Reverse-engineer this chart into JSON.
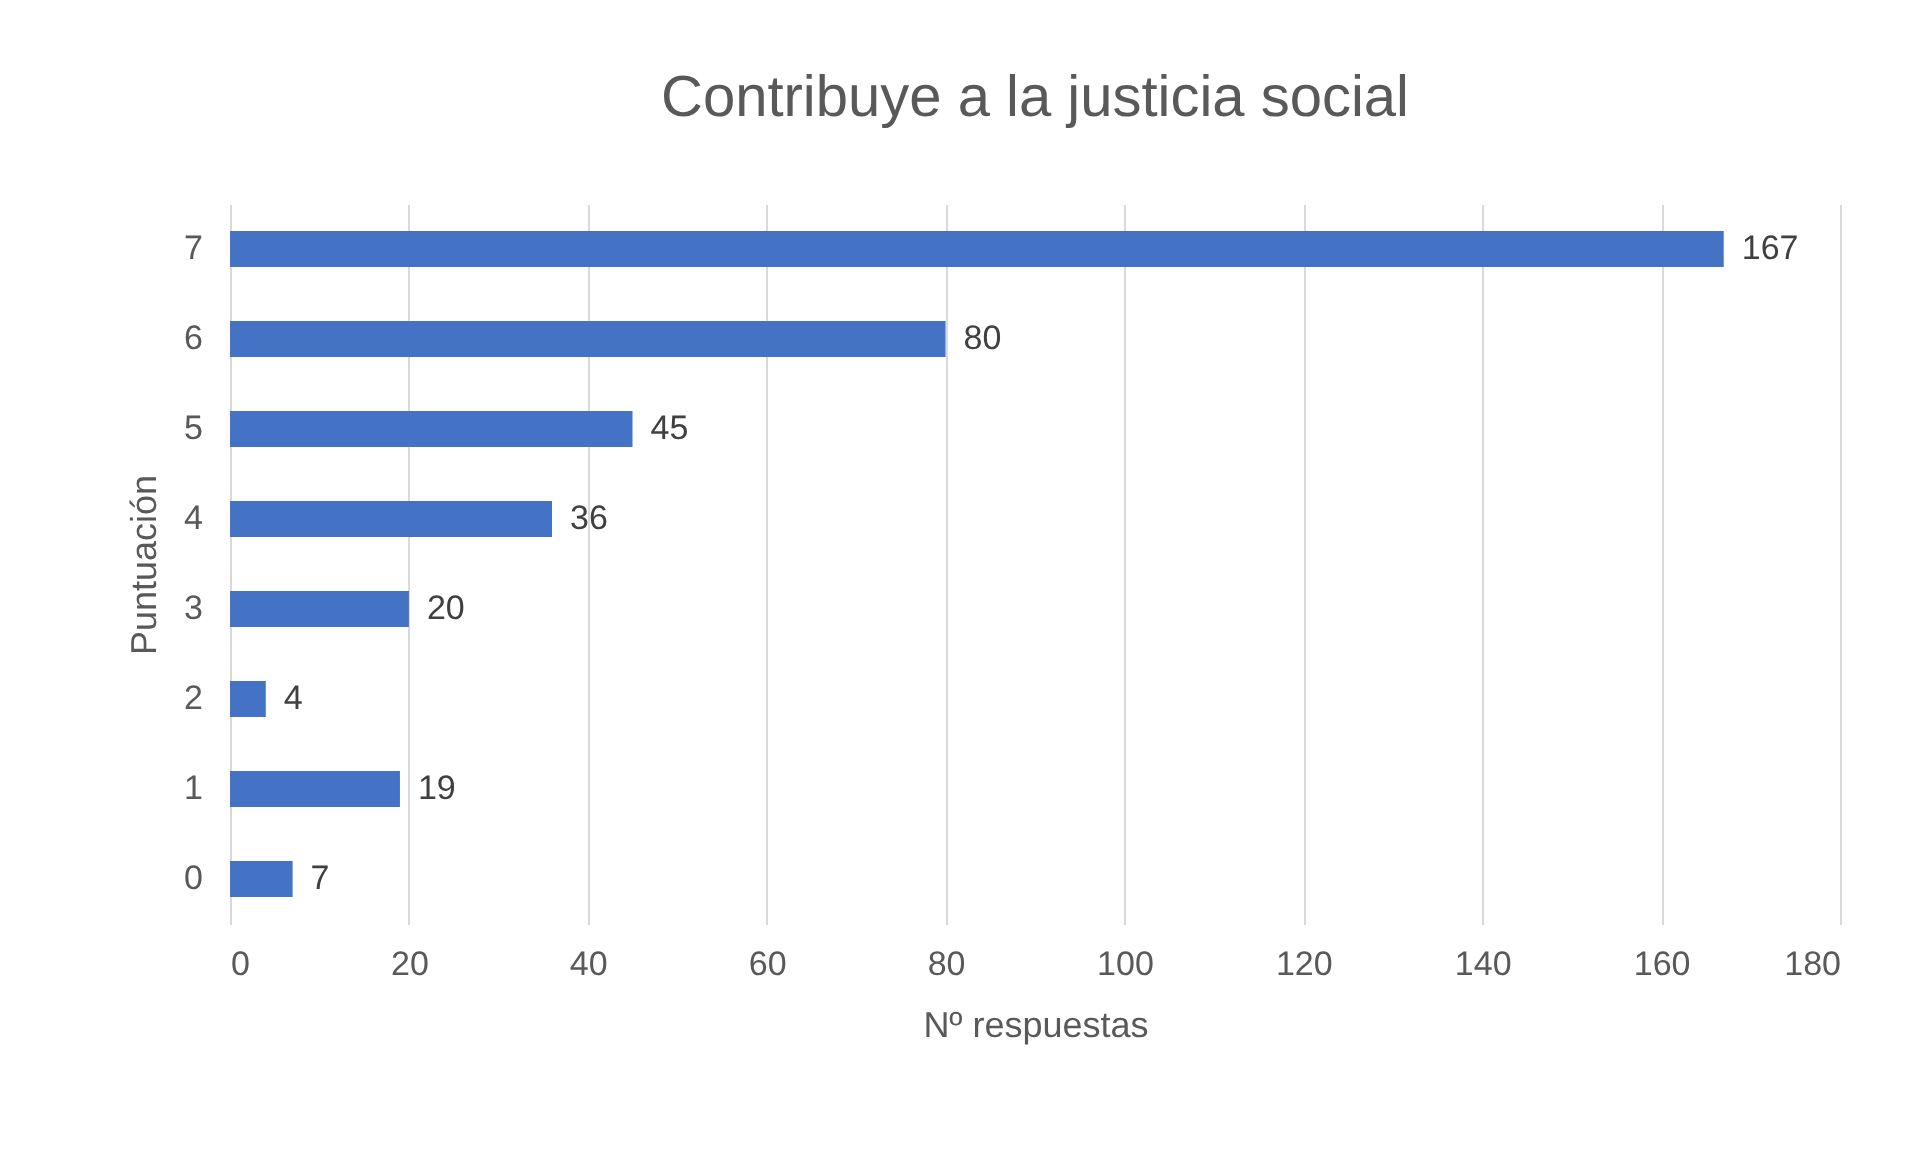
{
  "chart_data": {
    "type": "bar",
    "orientation": "horizontal",
    "title": "Contribuye a la justicia social",
    "xlabel": "Nº respuestas",
    "ylabel": "Puntuación",
    "categories": [
      "7",
      "6",
      "5",
      "4",
      "3",
      "2",
      "1",
      "0"
    ],
    "values": [
      167,
      80,
      45,
      36,
      20,
      4,
      19,
      7
    ],
    "color": "#4472c4",
    "xlim": [
      0,
      180
    ],
    "xticks": [
      0,
      20,
      40,
      60,
      80,
      100,
      120,
      140,
      160,
      180
    ],
    "grid": "x",
    "data_labels": true
  }
}
